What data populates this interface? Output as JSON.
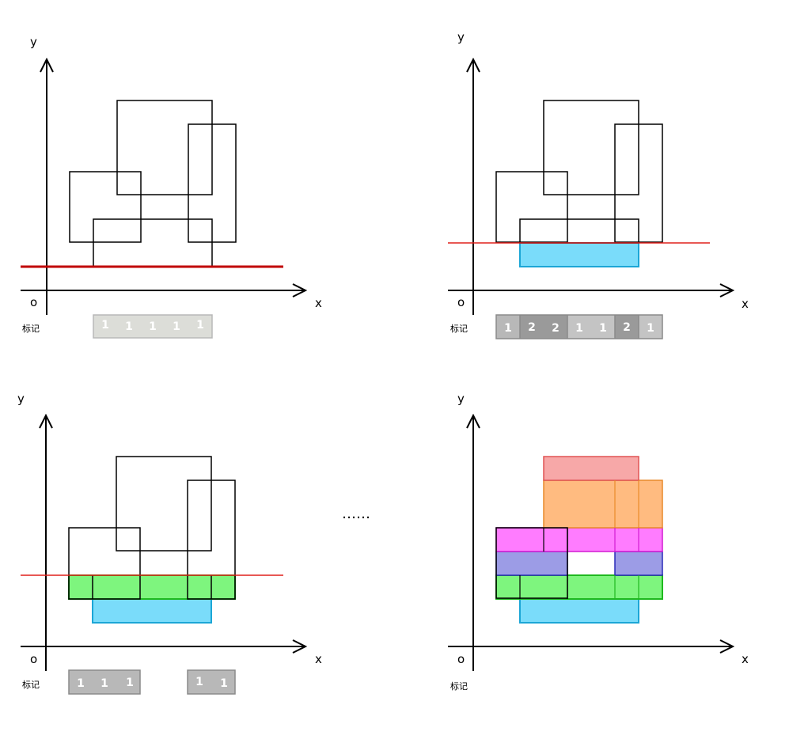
{
  "axis_labels": {
    "x": "x",
    "y": "y",
    "origin": "o"
  },
  "mark_label": "标记",
  "ellipsis": "……",
  "panels": [
    {
      "id": "panel-1",
      "mark_values": [
        "1",
        "1",
        "1",
        "1",
        "1"
      ]
    },
    {
      "id": "panel-2",
      "mark_values": [
        "1",
        "2",
        "2",
        "1",
        "1",
        "2",
        "1"
      ]
    },
    {
      "id": "panel-3",
      "mark_values_left": [
        "1",
        "1",
        "1"
      ],
      "mark_values_right": [
        "1",
        "1"
      ]
    },
    {
      "id": "panel-4"
    }
  ],
  "colors": {
    "scanline_bold": "#c00000",
    "scanline": "#e0201c",
    "cyan": "#7adcfa",
    "green": "#7ef57e",
    "blue": "#9c9ce6",
    "magenta": "#ff7cff",
    "orange": "#ffbb80",
    "pink": "#f7a8a8",
    "mark_light": "#dcddd8",
    "mark_mid": "#b8b8b8",
    "mark_dark": "#9a9a9a"
  }
}
